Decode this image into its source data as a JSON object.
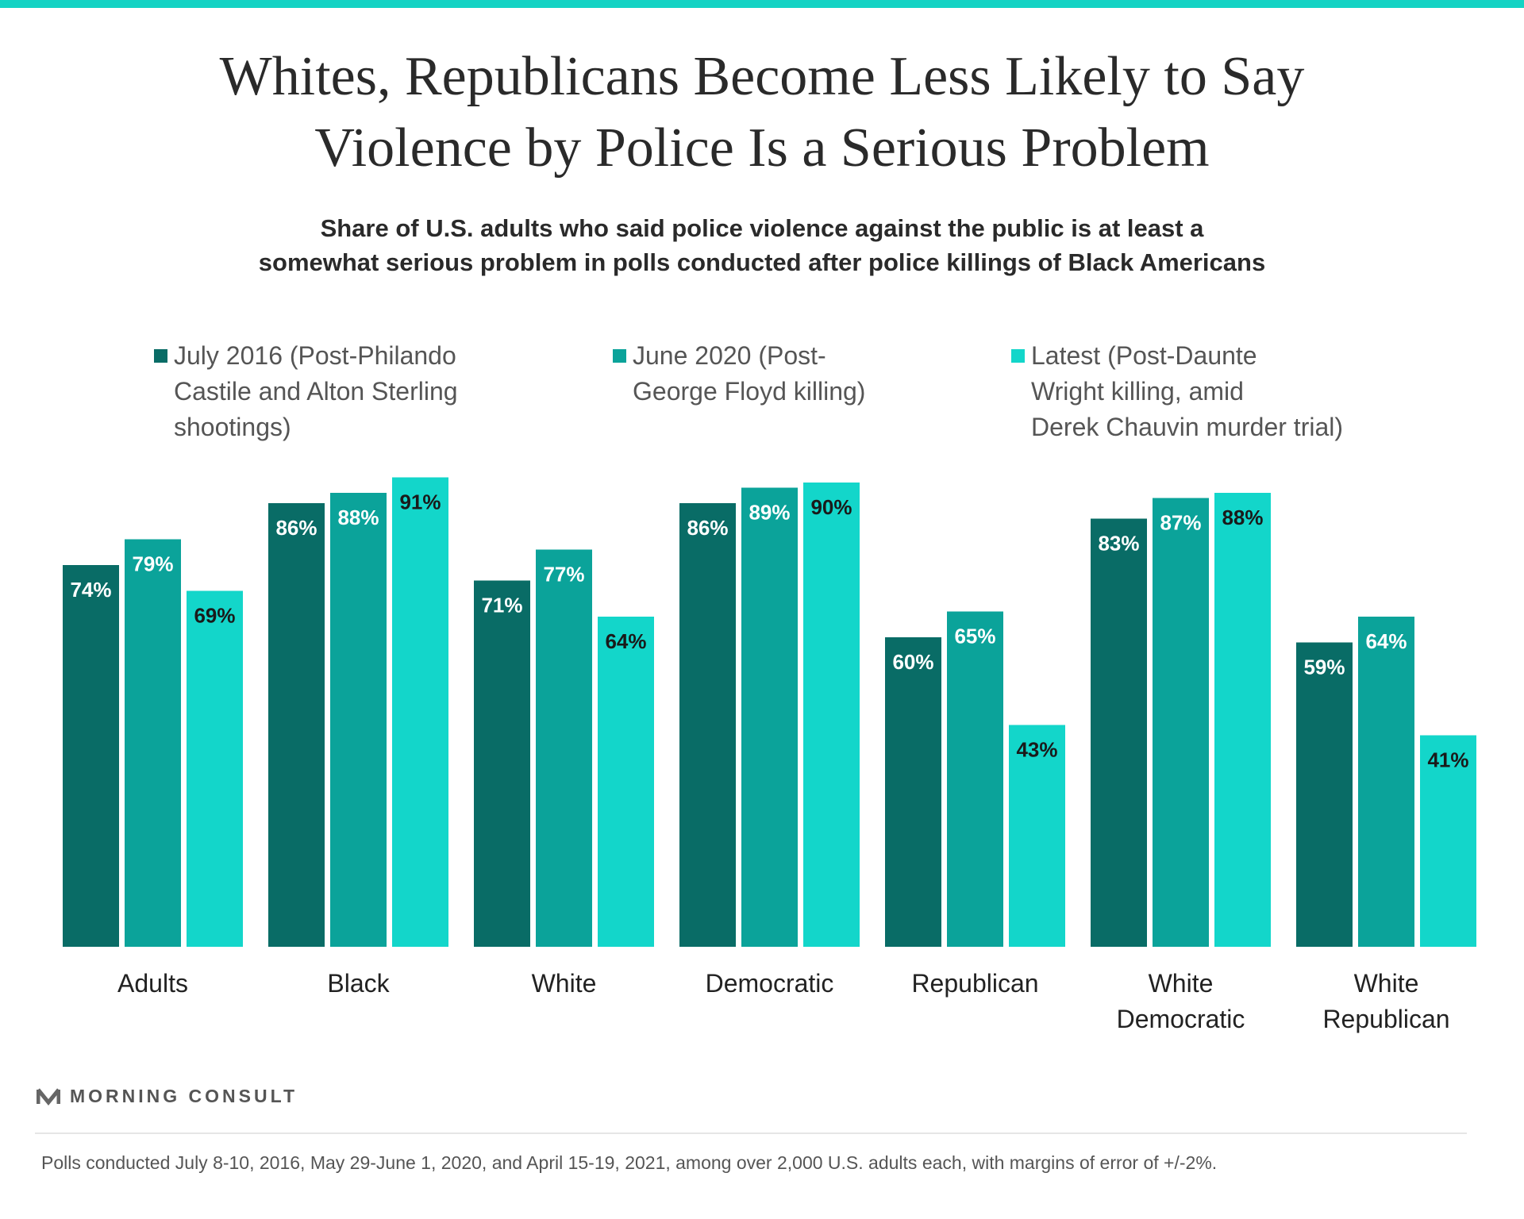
{
  "title_line1": "Whites, Republicans Become Less Likely to Say",
  "title_line2": "Violence by Police Is a Serious Problem",
  "subtitle_line1": "Share of U.S. adults who said police violence against the public is at least a",
  "subtitle_line2": "somewhat serious problem in polls conducted after police killings of Black Americans",
  "legend": [
    {
      "lines": [
        "July 2016 (Post-Philando",
        "Castile and Alton Sterling",
        "shootings)"
      ],
      "color": "#096c66"
    },
    {
      "lines": [
        "June 2020 (Post-",
        "George Floyd killing)"
      ],
      "color": "#0ba39a"
    },
    {
      "lines": [
        "Latest (Post-Daunte",
        "Wright killing, amid",
        "Derek Chauvin murder trial)"
      ],
      "color": "#13d6ca"
    }
  ],
  "chart_data": {
    "type": "bar",
    "title": "Whites, Republicans Become Less Likely to Say Violence by Police Is a Serious Problem",
    "subtitle": "Share of U.S. adults who said police violence against the public is at least a somewhat serious problem in polls conducted after police killings of Black Americans",
    "categories": [
      [
        "Adults"
      ],
      [
        "Black"
      ],
      [
        "White"
      ],
      [
        "Democratic"
      ],
      [
        "Republican"
      ],
      [
        "White",
        "Democratic"
      ],
      [
        "White",
        "Republican"
      ]
    ],
    "series": [
      {
        "name": "July 2016 (Post-Philando Castile and Alton Sterling shootings)",
        "values": [
          74,
          86,
          71,
          86,
          60,
          83,
          59
        ],
        "color": "#096c66",
        "label_color": "#ffffff"
      },
      {
        "name": "June 2020 (Post-George Floyd killing)",
        "values": [
          79,
          88,
          77,
          89,
          65,
          87,
          64
        ],
        "color": "#0ba39a",
        "label_color": "#ffffff"
      },
      {
        "name": "Latest (Post-Daunte Wright killing, amid Derek Chauvin murder trial)",
        "values": [
          69,
          91,
          64,
          90,
          43,
          88,
          41
        ],
        "color": "#13d6ca",
        "label_color": "#1a1a1a"
      }
    ],
    "value_suffix": "%",
    "ylim": [
      0,
      100
    ],
    "grid": false,
    "legend_position": "top"
  },
  "brand": "MORNING CONSULT",
  "footnote": "Polls conducted July 8-10, 2016, May 29-June 1, 2020, and April 15-19, 2021, among over 2,000 U.S. adults each, with margins of error of +/-2%."
}
